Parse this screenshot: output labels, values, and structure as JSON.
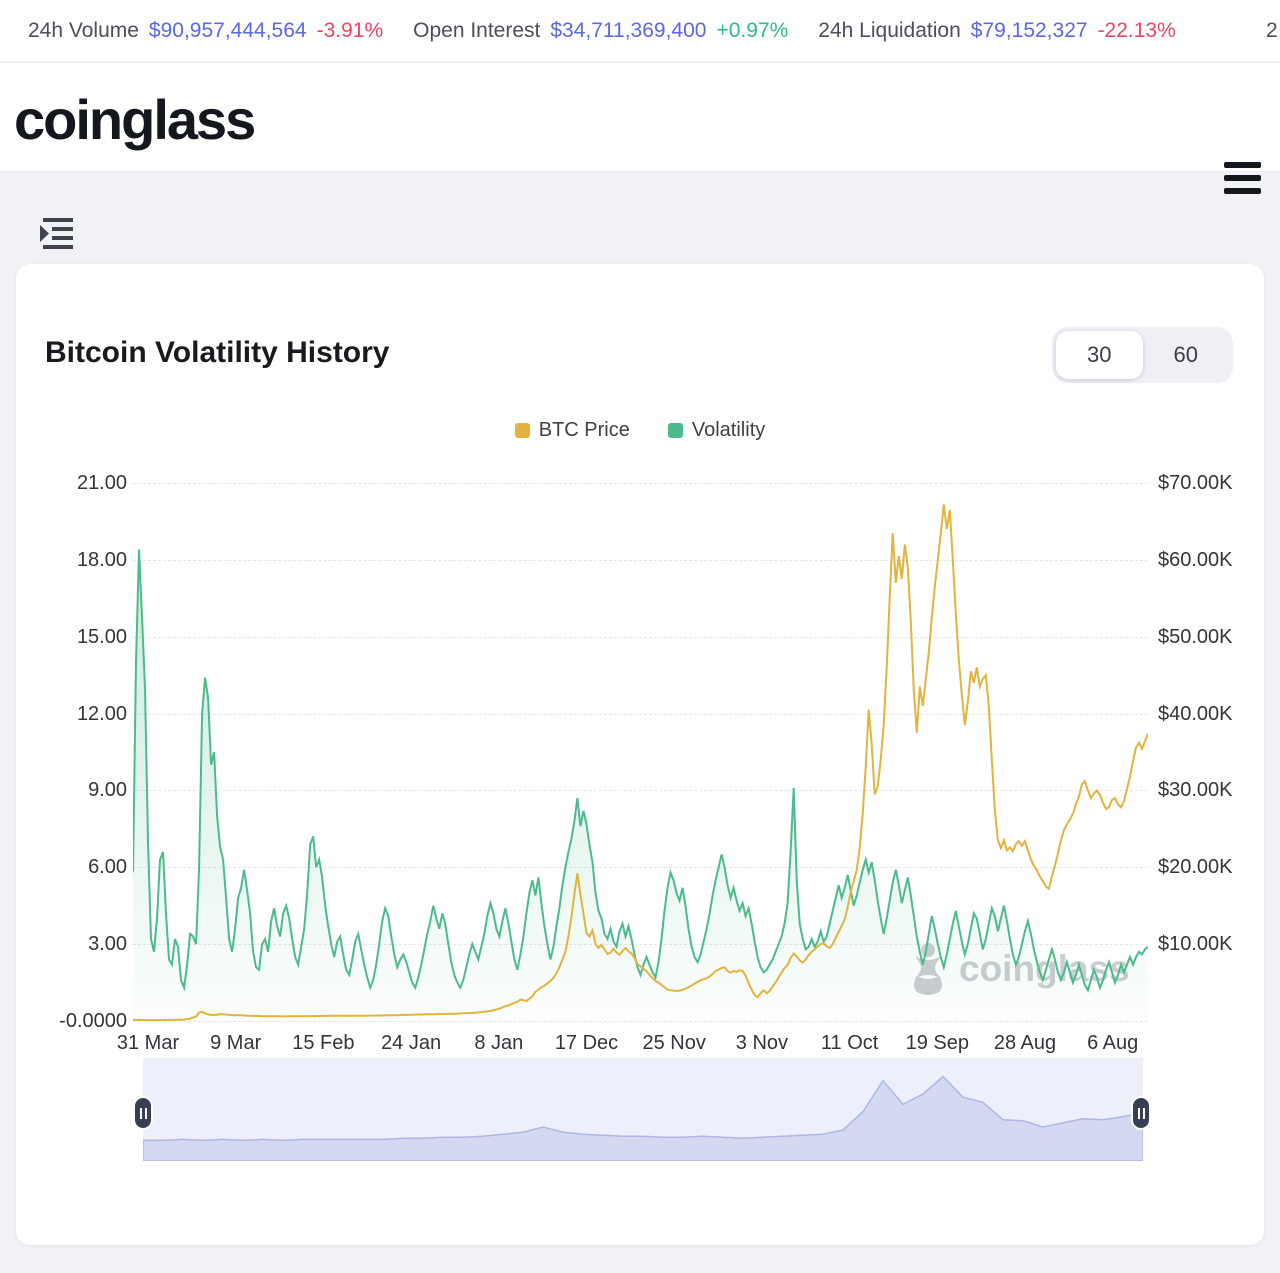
{
  "colors": {
    "up": "#2ebd85",
    "down": "#ee4560",
    "value_blue": "#5b68e1",
    "btc": "#e2b33d",
    "volatility": "#4cbb8c",
    "nav_fill": "#d4d9f2",
    "nav_line": "#aeb7e4"
  },
  "stats_bar": {
    "items": [
      {
        "label": "24h Volume",
        "value": "$90,957,444,564",
        "change": "-3.91%",
        "direction": "down"
      },
      {
        "label": "Open Interest",
        "value": "$34,711,369,400",
        "change": "+0.97%",
        "direction": "up"
      },
      {
        "label": "24h Liquidation",
        "value": "$79,152,327",
        "change": "-22.13%",
        "direction": "down"
      }
    ],
    "overflow_hint": "2"
  },
  "header": {
    "logo": "coinglass"
  },
  "card": {
    "title": "Bitcoin Volatility History",
    "range_toggle": {
      "options": [
        "30",
        "60"
      ],
      "selected": "30"
    }
  },
  "legend": {
    "items": [
      {
        "label": "BTC Price",
        "color": "#e2b33d"
      },
      {
        "label": "Volatility",
        "color": "#4cbb8c"
      }
    ]
  },
  "watermark": {
    "text": "coinglass"
  },
  "chart_data": {
    "type": "line",
    "title": "Bitcoin Volatility History",
    "grid": true,
    "legend_position": "top-center",
    "x_tick_labels": [
      "31 Mar",
      "9 Mar",
      "15 Feb",
      "24 Jan",
      "8 Jan",
      "17 Dec",
      "25 Nov",
      "3 Nov",
      "11 Oct",
      "19 Sep",
      "28 Aug",
      "6 Aug"
    ],
    "left_axis": {
      "title": "Volatility",
      "min": 0,
      "max": 21,
      "ticks": [
        "21.00",
        "18.00",
        "15.00",
        "12.00",
        "9.00",
        "6.00",
        "3.00",
        "-0.0000"
      ]
    },
    "right_axis": {
      "title": "BTC Price",
      "min": 0,
      "max": 70000,
      "ticks": [
        "$70.00K",
        "$60.00K",
        "$50.00K",
        "$40.00K",
        "$30.00K",
        "$20.00K",
        "$10.00K",
        ""
      ]
    },
    "series": [
      {
        "name": "Volatility",
        "axis": "left",
        "color": "#4cbb8c",
        "fill": true,
        "max": 21,
        "values": [
          5.8,
          14.0,
          18.4,
          15.8,
          13.0,
          7.0,
          3.2,
          2.7,
          4.0,
          6.3,
          6.6,
          4.2,
          2.4,
          2.2,
          3.2,
          2.9,
          1.6,
          1.3,
          2.2,
          3.4,
          3.3,
          3.0,
          6.0,
          12.0,
          13.4,
          12.6,
          10.0,
          10.5,
          8.0,
          6.8,
          6.3,
          4.8,
          3.2,
          2.7,
          3.6,
          4.8,
          5.2,
          5.9,
          5.1,
          4.2,
          2.7,
          2.1,
          2.0,
          3.0,
          3.2,
          2.7,
          3.9,
          4.4,
          3.7,
          3.3,
          4.2,
          4.5,
          4.0,
          3.2,
          2.5,
          2.2,
          2.9,
          3.6,
          5.0,
          6.9,
          7.2,
          6.0,
          6.3,
          5.6,
          4.5,
          3.7,
          3.0,
          2.5,
          3.1,
          3.3,
          2.6,
          2.0,
          1.8,
          2.4,
          3.1,
          3.4,
          2.8,
          2.2,
          1.7,
          1.3,
          1.6,
          2.2,
          3.0,
          3.9,
          4.4,
          4.1,
          3.3,
          2.6,
          2.1,
          2.4,
          2.6,
          2.3,
          1.9,
          1.5,
          1.3,
          1.7,
          2.2,
          2.8,
          3.4,
          3.9,
          4.5,
          4.0,
          3.6,
          4.2,
          3.8,
          3.0,
          2.3,
          1.8,
          1.5,
          1.3,
          1.6,
          2.1,
          2.6,
          3.0,
          2.7,
          2.4,
          2.9,
          3.4,
          4.1,
          4.6,
          4.2,
          3.6,
          3.3,
          3.9,
          4.4,
          3.8,
          3.1,
          2.4,
          2.0,
          2.6,
          3.3,
          4.2,
          5.0,
          5.5,
          4.9,
          5.6,
          4.6,
          3.7,
          3.0,
          2.4,
          2.9,
          3.7,
          4.4,
          5.3,
          6.0,
          6.6,
          7.1,
          7.8,
          8.7,
          7.6,
          8.2,
          7.7,
          6.9,
          6.2,
          5.0,
          4.3,
          4.0,
          3.4,
          3.2,
          3.6,
          3.1,
          2.9,
          3.5,
          3.8,
          3.3,
          3.7,
          3.2,
          2.6,
          2.1,
          1.8,
          2.2,
          2.5,
          2.2,
          1.9,
          1.7,
          2.3,
          3.2,
          4.3,
          5.2,
          5.8,
          5.5,
          5.0,
          4.7,
          5.2,
          4.5,
          3.6,
          2.9,
          2.5,
          2.3,
          2.6,
          3.1,
          3.6,
          4.2,
          4.9,
          5.5,
          6.0,
          6.5,
          6.0,
          5.3,
          4.8,
          5.2,
          4.7,
          4.3,
          4.6,
          4.1,
          4.4,
          3.8,
          3.1,
          2.5,
          2.1,
          1.9,
          2.0,
          2.2,
          2.4,
          2.7,
          3.0,
          3.3,
          3.8,
          4.6,
          6.6,
          9.1,
          5.5,
          3.8,
          3.2,
          2.8,
          2.9,
          3.2,
          2.9,
          3.1,
          3.5,
          3.1,
          3.3,
          3.8,
          4.3,
          4.8,
          5.3,
          4.8,
          5.2,
          5.7,
          5.1,
          4.5,
          4.9,
          5.4,
          5.9,
          6.3,
          5.8,
          6.2,
          5.5,
          4.7,
          4.0,
          3.4,
          4.0,
          4.7,
          5.4,
          5.9,
          5.3,
          4.6,
          5.1,
          5.6,
          4.9,
          4.1,
          3.3,
          2.7,
          2.2,
          2.7,
          3.4,
          4.1,
          3.6,
          3.0,
          2.5,
          2.1,
          2.6,
          3.2,
          3.8,
          4.3,
          3.7,
          3.1,
          2.6,
          3.0,
          3.6,
          4.2,
          4.0,
          3.4,
          2.8,
          3.2,
          3.8,
          4.4,
          4.1,
          3.5,
          4.0,
          4.5,
          3.9,
          3.2,
          2.6,
          2.2,
          2.5,
          3.0,
          3.5,
          3.9,
          3.4,
          2.8,
          2.3,
          1.9,
          1.6,
          2.0,
          2.4,
          2.8,
          2.4,
          1.9,
          1.6,
          1.9,
          2.3,
          1.9,
          1.5,
          1.8,
          2.2,
          1.8,
          1.4,
          1.2,
          1.6,
          2.0,
          1.7,
          1.3,
          1.6,
          2.0,
          2.3,
          1.9,
          1.5,
          1.8,
          2.2,
          1.9,
          2.2,
          2.5,
          2.2,
          2.5,
          2.7,
          2.6,
          2.8,
          2.9
        ]
      },
      {
        "name": "BTC Price",
        "axis": "right",
        "color": "#e2b33d",
        "fill": false,
        "max": 70,
        "unit": "K USD",
        "values": [
          0.15,
          0.14,
          0.13,
          0.13,
          0.12,
          0.12,
          0.12,
          0.12,
          0.12,
          0.13,
          0.13,
          0.13,
          0.14,
          0.14,
          0.15,
          0.15,
          0.16,
          0.18,
          0.22,
          0.3,
          0.45,
          0.6,
          1.1,
          1.2,
          1.0,
          0.85,
          0.8,
          0.8,
          0.82,
          0.9,
          0.88,
          0.85,
          0.8,
          0.78,
          0.76,
          0.75,
          0.74,
          0.72,
          0.7,
          0.68,
          0.67,
          0.66,
          0.65,
          0.64,
          0.63,
          0.62,
          0.62,
          0.61,
          0.61,
          0.6,
          0.6,
          0.6,
          0.61,
          0.61,
          0.62,
          0.62,
          0.62,
          0.63,
          0.63,
          0.64,
          0.64,
          0.65,
          0.65,
          0.66,
          0.66,
          0.67,
          0.68,
          0.68,
          0.69,
          0.7,
          0.69,
          0.69,
          0.68,
          0.68,
          0.68,
          0.68,
          0.69,
          0.69,
          0.7,
          0.7,
          0.71,
          0.71,
          0.72,
          0.72,
          0.73,
          0.74,
          0.74,
          0.75,
          0.76,
          0.78,
          0.79,
          0.8,
          0.81,
          0.82,
          0.83,
          0.84,
          0.85,
          0.86,
          0.87,
          0.88,
          0.89,
          0.9,
          0.9,
          0.91,
          0.92,
          0.93,
          0.94,
          0.95,
          0.96,
          0.98,
          1.0,
          1.02,
          1.04,
          1.06,
          1.08,
          1.12,
          1.16,
          1.2,
          1.26,
          1.3,
          1.4,
          1.5,
          1.6,
          1.75,
          1.95,
          2.0,
          2.2,
          2.35,
          2.5,
          2.8,
          2.7,
          2.6,
          2.9,
          3.2,
          3.8,
          4.1,
          4.4,
          4.6,
          4.9,
          5.2,
          5.6,
          6.2,
          7.0,
          8.0,
          9.0,
          11.0,
          13.5,
          16.5,
          19.2,
          16.5,
          14.0,
          11.5,
          11.0,
          11.8,
          10.0,
          9.5,
          9.9,
          9.3,
          8.7,
          8.9,
          9.4,
          8.9,
          8.6,
          9.1,
          9.5,
          9.1,
          8.8,
          8.2,
          7.4,
          7.1,
          6.8,
          6.5,
          6.0,
          5.6,
          5.2,
          5.0,
          4.7,
          4.4,
          4.1,
          4.0,
          3.95,
          3.9,
          3.95,
          4.05,
          4.2,
          4.4,
          4.6,
          4.85,
          5.1,
          5.3,
          5.45,
          5.55,
          5.8,
          6.1,
          6.5,
          6.7,
          6.9,
          7.0,
          6.5,
          6.3,
          6.5,
          6.4,
          6.6,
          6.5,
          5.9,
          4.9,
          4.1,
          3.4,
          3.1,
          3.6,
          4.0,
          3.6,
          3.9,
          4.5,
          5.0,
          5.7,
          6.3,
          6.9,
          7.3,
          8.2,
          8.8,
          8.4,
          7.9,
          7.6,
          8.0,
          8.6,
          9.0,
          9.3,
          9.7,
          10.0,
          10.1,
          9.7,
          9.5,
          10.0,
          10.8,
          11.6,
          12.4,
          13.2,
          14.8,
          16.8,
          18.2,
          19.6,
          22.5,
          27.0,
          33.0,
          40.5,
          36.0,
          29.5,
          30.5,
          34.0,
          38.5,
          46.0,
          55.0,
          63.5,
          57.0,
          60.5,
          57.5,
          62.0,
          59.0,
          52.0,
          43.0,
          37.5,
          43.5,
          41.0,
          44.5,
          48.0,
          52.5,
          56.5,
          60.0,
          63.5,
          67.2,
          64.0,
          66.5,
          60.0,
          53.0,
          47.0,
          42.5,
          38.5,
          41.5,
          45.5,
          44.0,
          46.0,
          43.5,
          44.5,
          45.0,
          41.0,
          34.0,
          27.5,
          23.5,
          22.5,
          23.5,
          22.2,
          22.6,
          22.1,
          23.0,
          23.4,
          22.8,
          23.4,
          22.2,
          21.0,
          20.2,
          19.6,
          18.8,
          18.2,
          17.5,
          17.2,
          18.8,
          20.2,
          21.8,
          23.5,
          24.8,
          25.6,
          26.2,
          27.0,
          28.2,
          29.2,
          30.8,
          31.2,
          30.0,
          29.0,
          29.6,
          30.0,
          29.4,
          28.4,
          27.6,
          27.8,
          28.8,
          29.0,
          28.2,
          27.8,
          28.6,
          30.2,
          31.8,
          33.8,
          35.6,
          36.2,
          35.4,
          36.4,
          37.4
        ]
      }
    ],
    "navigator": {
      "values": [
        0.2,
        0.2,
        0.21,
        0.2,
        0.21,
        0.2,
        0.21,
        0.2,
        0.21,
        0.21,
        0.21,
        0.21,
        0.21,
        0.22,
        0.22,
        0.23,
        0.23,
        0.24,
        0.26,
        0.28,
        0.33,
        0.28,
        0.26,
        0.25,
        0.24,
        0.24,
        0.23,
        0.23,
        0.24,
        0.23,
        0.22,
        0.23,
        0.24,
        0.25,
        0.26,
        0.3,
        0.48,
        0.78,
        0.55,
        0.65,
        0.82,
        0.62,
        0.57,
        0.4,
        0.39,
        0.33,
        0.37,
        0.41,
        0.4,
        0.43,
        0.47
      ]
    }
  }
}
